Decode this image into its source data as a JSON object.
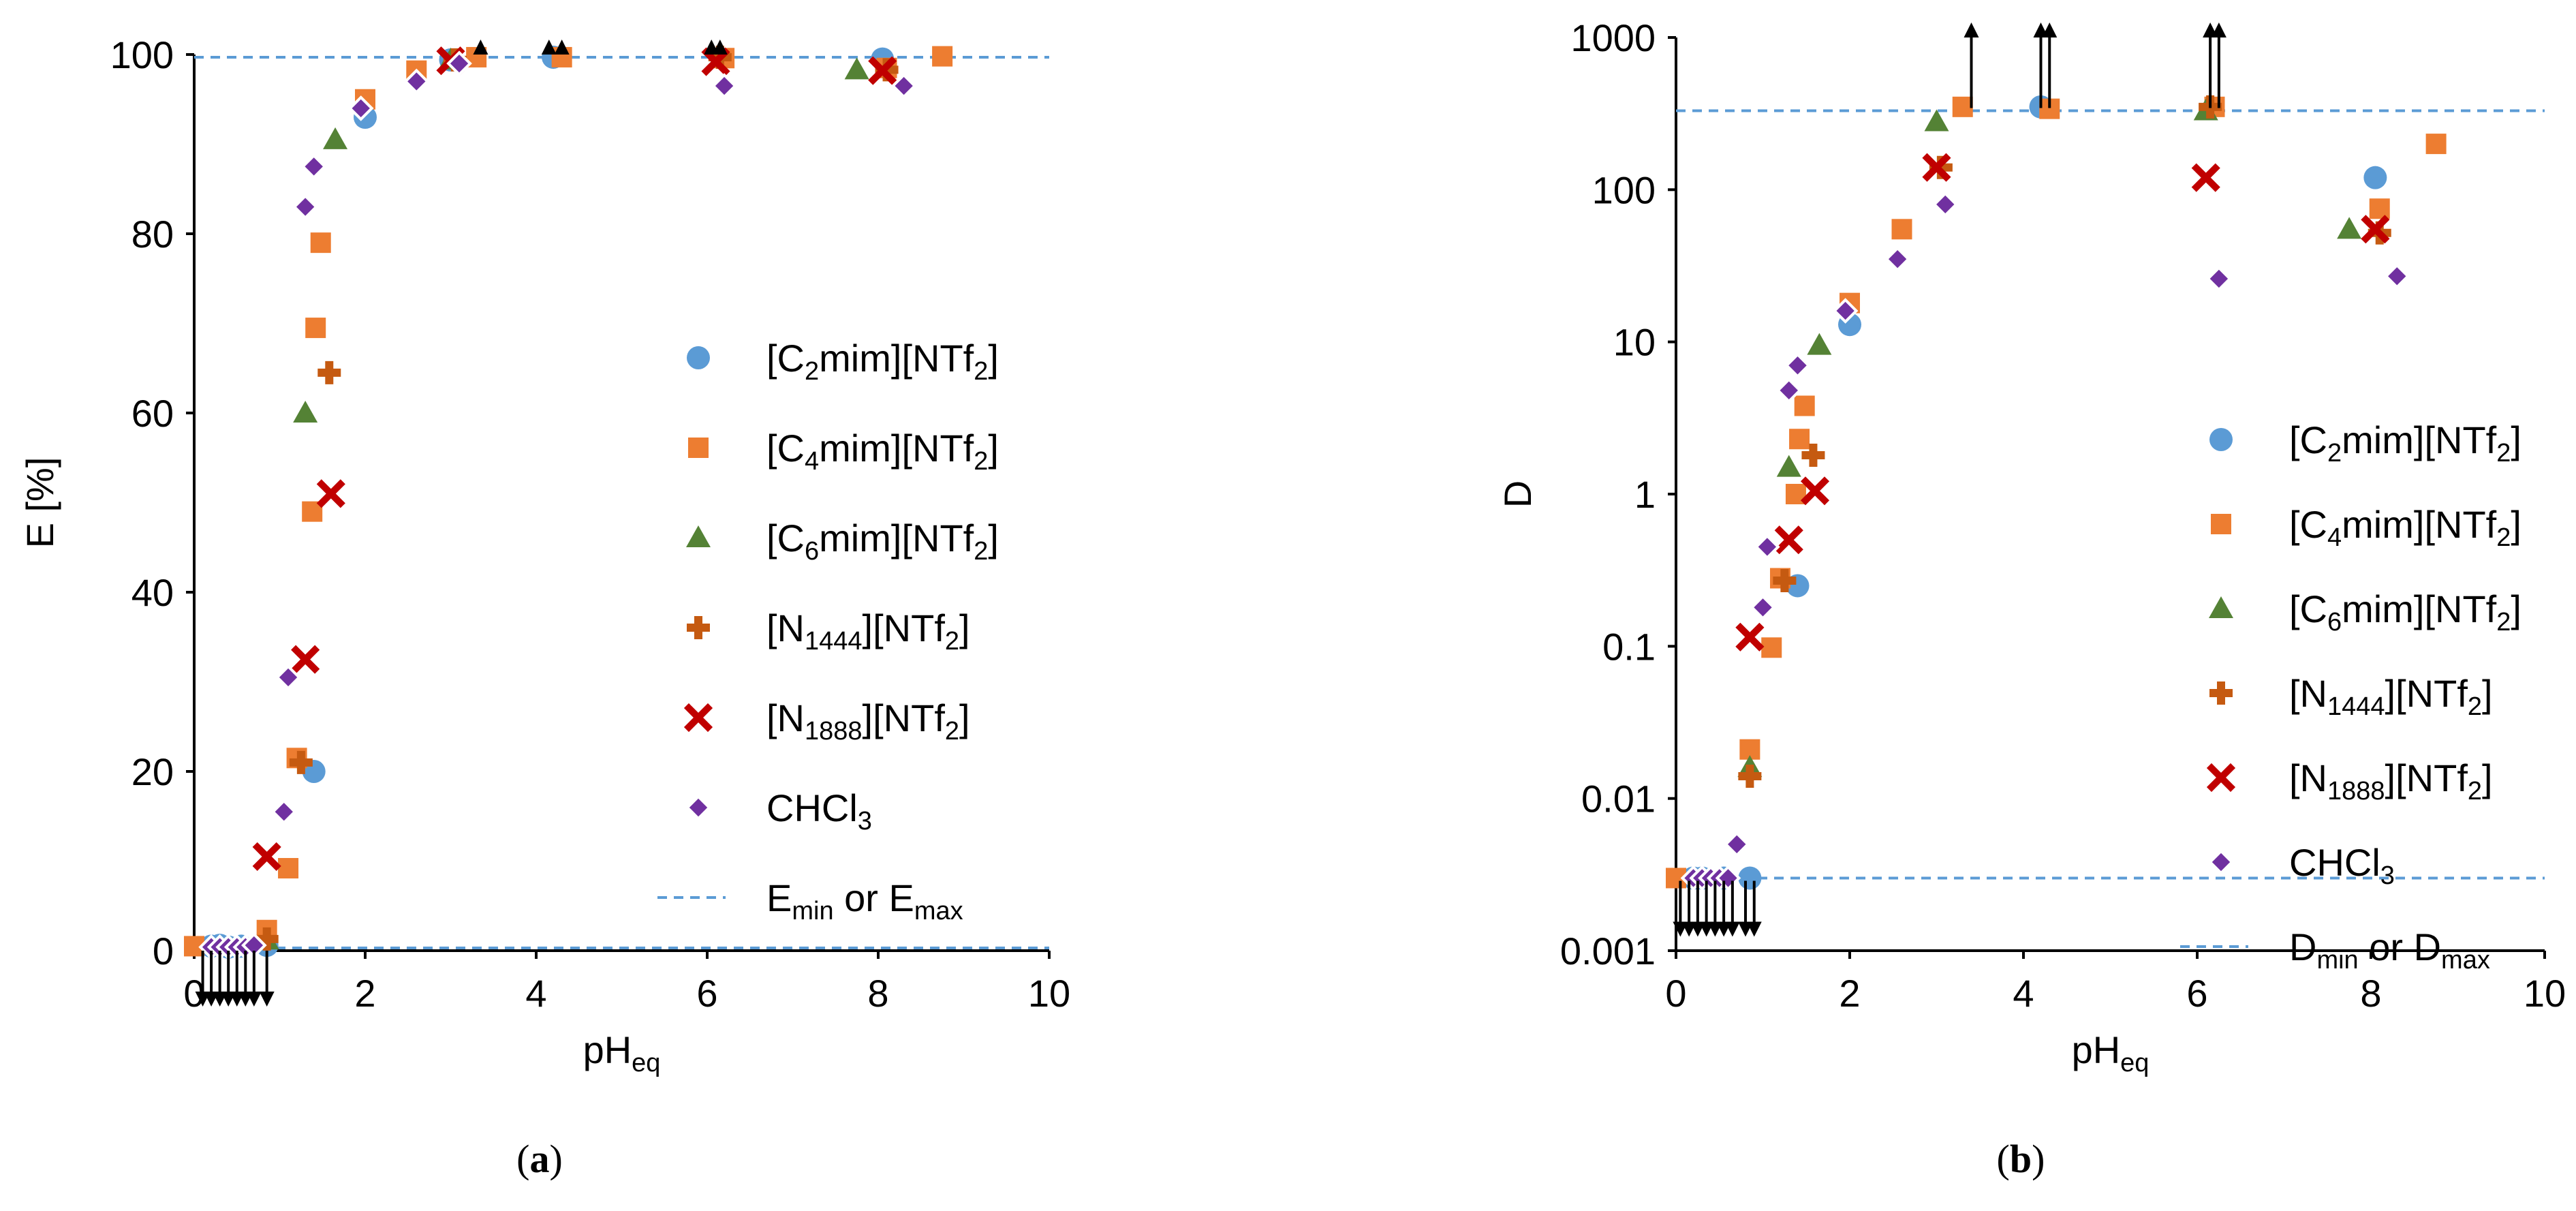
{
  "colors": {
    "c2mim": "#5b9bd5",
    "c4mim": "#ed7d31",
    "c6mim": "#548235",
    "n1444": "#c55a11",
    "n1888": "#c00000",
    "chcl3": "#7030a0",
    "limit": "#5b9bd5",
    "arrow": "#000000",
    "axis": "#000000"
  },
  "chart_data": [
    {
      "type": "scatter",
      "panel": "a",
      "panel_label": "a",
      "xlabel": "pH",
      "xlabel_sub": "eq",
      "ylabel": "E [%]",
      "xlim": [
        0,
        10
      ],
      "ylim": [
        0,
        100
      ],
      "yscale": "linear",
      "xticks": [
        "0",
        "2",
        "4",
        "6",
        "8",
        "10"
      ],
      "yticks": [
        "0",
        "20",
        "40",
        "60",
        "80",
        "100"
      ],
      "legend_position": "right-middle",
      "series": [
        {
          "key": "c2mim",
          "marker": "circle",
          "name_parts": [
            "[C",
            "2",
            "mim][NTf",
            "2",
            "]"
          ],
          "points": [
            [
              0.2,
              0.5
            ],
            [
              0.3,
              0.6
            ],
            [
              0.4,
              0.4
            ],
            [
              0.55,
              0.5
            ],
            [
              0.85,
              0.6
            ],
            [
              1.4,
              20
            ],
            [
              2.0,
              93
            ],
            [
              3.0,
              99.4
            ],
            [
              4.2,
              99.7
            ],
            [
              8.05,
              99.5
            ]
          ]
        },
        {
          "key": "c4mim",
          "marker": "square",
          "name_parts": [
            "[C",
            "4",
            "mim][NTf",
            "2",
            "]"
          ],
          "points": [
            [
              0.0,
              0.5
            ],
            [
              0.85,
              2.3
            ],
            [
              1.1,
              9.2
            ],
            [
              1.2,
              21.5
            ],
            [
              1.38,
              49
            ],
            [
              1.42,
              69.5
            ],
            [
              1.48,
              79
            ],
            [
              2.0,
              95
            ],
            [
              2.6,
              98.2
            ],
            [
              3.3,
              99.7
            ],
            [
              4.3,
              99.7
            ],
            [
              6.2,
              99.6
            ],
            [
              8.1,
              98.5
            ],
            [
              8.75,
              99.8
            ]
          ]
        },
        {
          "key": "c6mim",
          "marker": "triangle",
          "name_parts": [
            "[C",
            "6",
            "mim][NTf",
            "2",
            "]"
          ],
          "points": [
            [
              0.85,
              1.2
            ],
            [
              1.3,
              60
            ],
            [
              1.65,
              90.5
            ],
            [
              3.0,
              99.4
            ],
            [
              7.75,
              98.3
            ]
          ]
        },
        {
          "key": "n1444",
          "marker": "plus",
          "name_parts": [
            "[N",
            "1444",
            "][NTf",
            "2",
            "]"
          ],
          "points": [
            [
              0.85,
              1.3
            ],
            [
              1.25,
              21
            ],
            [
              1.58,
              64.5
            ],
            [
              3.05,
              99.4
            ],
            [
              6.15,
              99.7
            ],
            [
              8.1,
              98.3
            ]
          ]
        },
        {
          "key": "n1888",
          "marker": "x",
          "name_parts": [
            "[N",
            "1888",
            "][NTf",
            "2",
            "]"
          ],
          "points": [
            [
              0.85,
              10.5
            ],
            [
              1.3,
              32.5
            ],
            [
              1.6,
              51
            ],
            [
              3.0,
              99.3
            ],
            [
              6.1,
              99.2
            ],
            [
              8.05,
              98.2
            ]
          ]
        },
        {
          "key": "chcl3",
          "marker": "diamond",
          "name_parts": [
            "CHCl",
            "3",
            ""
          ],
          "points": [
            [
              0.2,
              0.4
            ],
            [
              0.3,
              0.4
            ],
            [
              0.4,
              0.4
            ],
            [
              0.5,
              0.4
            ],
            [
              0.6,
              0.4
            ],
            [
              0.7,
              0.6
            ],
            [
              1.05,
              15.5
            ],
            [
              1.1,
              30.5
            ],
            [
              1.3,
              83
            ],
            [
              1.4,
              87.5
            ],
            [
              1.95,
              94
            ],
            [
              2.6,
              97
            ],
            [
              3.1,
              99
            ],
            [
              6.2,
              96.5
            ],
            [
              8.3,
              96.5
            ]
          ]
        }
      ],
      "limit_lines": {
        "values": [
          99.7,
          0.3
        ],
        "name_parts": [
          "E",
          "min",
          " or E",
          "max",
          ""
        ]
      },
      "arrows": {
        "up_x": [
          3.35,
          4.15,
          4.3,
          6.05,
          6.15
        ],
        "down_x": [
          0.1,
          0.2,
          0.3,
          0.4,
          0.5,
          0.6,
          0.7,
          0.85
        ]
      }
    },
    {
      "type": "scatter",
      "panel": "b",
      "panel_label": "b",
      "xlabel": "pH",
      "xlabel_sub": "eq",
      "ylabel": "D",
      "xlim": [
        0,
        10
      ],
      "ylim": [
        0.001,
        1000
      ],
      "yscale": "log",
      "xticks": [
        "0",
        "2",
        "4",
        "6",
        "8",
        "10"
      ],
      "yticks": [
        "0.001",
        "0.01",
        "0.1",
        "1",
        "10",
        "100",
        "1000"
      ],
      "legend_position": "right-lower",
      "series": [
        {
          "key": "c2mim",
          "marker": "circle",
          "name_parts": [
            "[C",
            "2",
            "mim][NTf",
            "2",
            "]"
          ],
          "points": [
            [
              0.2,
              0.003
            ],
            [
              0.3,
              0.003
            ],
            [
              0.55,
              0.003
            ],
            [
              0.85,
              0.003
            ],
            [
              1.4,
              0.25
            ],
            [
              2.0,
              13
            ],
            [
              4.2,
              350
            ],
            [
              8.05,
              120
            ]
          ]
        },
        {
          "key": "c4mim",
          "marker": "square",
          "name_parts": [
            "[C",
            "4",
            "mim][NTf",
            "2",
            "]"
          ],
          "points": [
            [
              0.0,
              0.003
            ],
            [
              0.85,
              0.021
            ],
            [
              1.1,
              0.098
            ],
            [
              1.2,
              0.28
            ],
            [
              1.38,
              1.0
            ],
            [
              1.42,
              2.3
            ],
            [
              1.48,
              3.8
            ],
            [
              2.0,
              18
            ],
            [
              2.6,
              55
            ],
            [
              3.3,
              350
            ],
            [
              4.3,
              340
            ],
            [
              6.2,
              350
            ],
            [
              8.1,
              75
            ],
            [
              8.75,
              200
            ]
          ]
        },
        {
          "key": "c6mim",
          "marker": "triangle",
          "name_parts": [
            "[C",
            "6",
            "mim][NTf",
            "2",
            "]"
          ],
          "points": [
            [
              0.85,
              0.016
            ],
            [
              1.3,
              1.5
            ],
            [
              1.65,
              9.5
            ],
            [
              3.0,
              280
            ],
            [
              6.1,
              330
            ],
            [
              7.75,
              55
            ]
          ]
        },
        {
          "key": "n1444",
          "marker": "plus",
          "name_parts": [
            "[N",
            "1444",
            "][NTf",
            "2",
            "]"
          ],
          "points": [
            [
              0.85,
              0.014
            ],
            [
              1.25,
              0.27
            ],
            [
              1.58,
              1.8
            ],
            [
              3.05,
              140
            ],
            [
              6.15,
              350
            ],
            [
              8.1,
              52
            ]
          ]
        },
        {
          "key": "n1888",
          "marker": "x",
          "name_parts": [
            "[N",
            "1888",
            "][NTf",
            "2",
            "]"
          ],
          "points": [
            [
              0.85,
              0.115
            ],
            [
              1.3,
              0.5
            ],
            [
              1.6,
              1.05
            ],
            [
              3.0,
              140
            ],
            [
              6.1,
              120
            ],
            [
              8.05,
              55
            ]
          ]
        },
        {
          "key": "chcl3",
          "marker": "diamond",
          "name_parts": [
            "CHCl",
            "3",
            ""
          ],
          "points": [
            [
              0.2,
              0.003
            ],
            [
              0.3,
              0.003
            ],
            [
              0.4,
              0.003
            ],
            [
              0.5,
              0.003
            ],
            [
              0.6,
              0.003
            ],
            [
              0.7,
              0.005
            ],
            [
              1.0,
              0.18
            ],
            [
              1.05,
              0.45
            ],
            [
              1.3,
              4.8
            ],
            [
              1.4,
              7
            ],
            [
              1.95,
              16
            ],
            [
              2.55,
              35
            ],
            [
              3.1,
              80
            ],
            [
              6.25,
              26
            ],
            [
              8.3,
              27
            ]
          ]
        }
      ],
      "limit_lines": {
        "values": [
          330,
          0.003
        ],
        "name_parts": [
          "D",
          "min",
          " or D",
          "max",
          ""
        ]
      },
      "arrows": {
        "up_x": [
          3.4,
          4.2,
          4.3,
          6.15,
          6.25
        ],
        "down_x": [
          0.05,
          0.15,
          0.25,
          0.35,
          0.45,
          0.55,
          0.65,
          0.8,
          0.9
        ]
      }
    }
  ]
}
